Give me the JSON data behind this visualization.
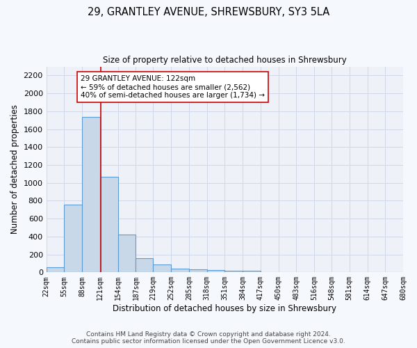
{
  "title1": "29, GRANTLEY AVENUE, SHREWSBURY, SY3 5LA",
  "title2": "Size of property relative to detached houses in Shrewsbury",
  "xlabel": "Distribution of detached houses by size in Shrewsbury",
  "ylabel": "Number of detached properties",
  "footnote": "Contains HM Land Registry data © Crown copyright and database right 2024.\nContains public sector information licensed under the Open Government Licence v3.0.",
  "bin_edges": [
    22,
    55,
    88,
    121,
    154,
    187,
    219,
    252,
    285,
    318,
    351,
    384,
    417,
    450,
    483,
    516,
    548,
    581,
    614,
    647,
    680
  ],
  "bar_heights": [
    55,
    760,
    1740,
    1070,
    420,
    155,
    85,
    45,
    35,
    25,
    15,
    15,
    0,
    0,
    0,
    0,
    0,
    0,
    0,
    0
  ],
  "bar_color": "#c8d8e8",
  "bar_edgecolor": "#5b9bd5",
  "grid_color": "#d0d8e8",
  "background_color": "#eef2f8",
  "fig_background_color": "#f5f8fd",
  "property_line_x": 122,
  "property_line_color": "#cc0000",
  "annotation_text": "29 GRANTLEY AVENUE: 122sqm\n← 59% of detached houses are smaller (2,562)\n40% of semi-detached houses are larger (1,734) →",
  "annotation_box_facecolor": "#ffffff",
  "annotation_box_edgecolor": "#cc0000",
  "ylim": [
    0,
    2300
  ],
  "yticks": [
    0,
    200,
    400,
    600,
    800,
    1000,
    1200,
    1400,
    1600,
    1800,
    2000,
    2200
  ],
  "tick_labels": [
    "22sqm",
    "55sqm",
    "88sqm",
    "121sqm",
    "154sqm",
    "187sqm",
    "219sqm",
    "252sqm",
    "285sqm",
    "318sqm",
    "351sqm",
    "384sqm",
    "417sqm",
    "450sqm",
    "483sqm",
    "516sqm",
    "548sqm",
    "581sqm",
    "614sqm",
    "647sqm",
    "680sqm"
  ],
  "title1_fontsize": 10.5,
  "title2_fontsize": 8.5,
  "ylabel_fontsize": 8.5,
  "xlabel_fontsize": 8.5,
  "ytick_fontsize": 8,
  "xtick_fontsize": 7,
  "annot_fontsize": 7.5,
  "footnote_fontsize": 6.5
}
